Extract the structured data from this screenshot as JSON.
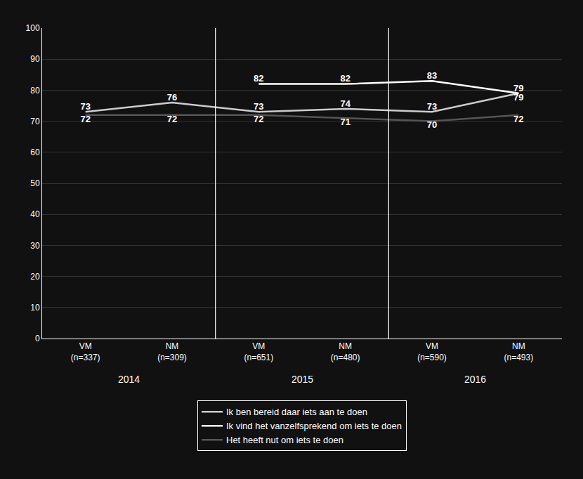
{
  "chart_data": {
    "type": "line",
    "categories": [
      "VM\n(n=337)",
      "NM\n(n=309)",
      "VM\n(n=651)",
      "NM\n(n=480)",
      "VM\n(n=590)",
      "NM\n(n=493)"
    ],
    "series": [
      {
        "name": "Ik ben bereid daar iets aan te doen",
        "color": "#cccccc",
        "values": [
          73,
          76,
          73,
          74,
          73,
          79
        ]
      },
      {
        "name": "Ik vind het vanzelfsprekend om iets te doen",
        "color": "#ffffff",
        "values": [
          null,
          null,
          82,
          82,
          83,
          79
        ]
      },
      {
        "name": "Het heeft nut om iets te doen",
        "color": "#555555",
        "values": [
          72,
          72,
          72,
          71,
          70,
          72
        ]
      }
    ],
    "ylim": [
      0,
      100
    ],
    "yticks": [
      0,
      10,
      20,
      30,
      40,
      50,
      60,
      70,
      80,
      90,
      100
    ],
    "grid": true,
    "data_labels": true,
    "legend": "bottom",
    "annotations": [
      {
        "text": "2014",
        "categories": [
          0,
          1
        ]
      },
      {
        "text": "2015",
        "categories": [
          2,
          3
        ]
      },
      {
        "text": "2016",
        "categories": [
          4,
          5
        ]
      }
    ]
  }
}
